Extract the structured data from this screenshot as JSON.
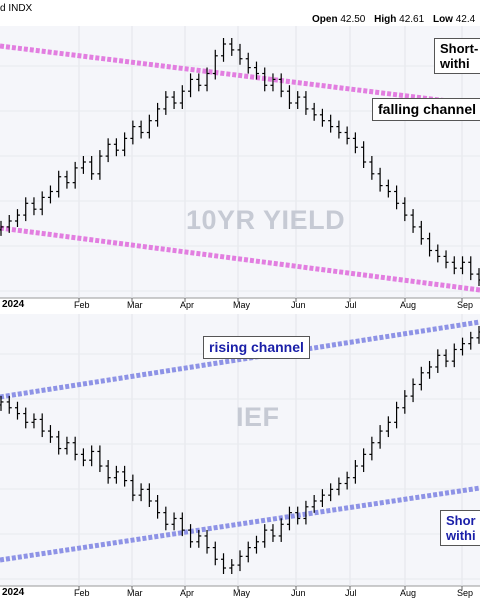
{
  "header": {
    "title": "d INDX",
    "open_label": "Open",
    "open_value": "42.50",
    "high_label": "High",
    "high_value": "42.61",
    "low_label": "Low",
    "low_value": "42.4"
  },
  "colors": {
    "channel_top": "#e27ee0",
    "channel_bottom": "#8e93e6",
    "bars": "#000000",
    "panel_bg": "#f5f6fa",
    "watermark": "#c6cad4",
    "blue_text": "#1a1fa8"
  },
  "annotations": {
    "top_short_line1": "Short-",
    "top_short_line2": "withi",
    "falling_channel": "falling channel",
    "rising_channel": "rising channel",
    "bottom_short_line1": "Shor",
    "bottom_short_line2": "withi"
  },
  "chart_data": [
    {
      "type": "ohlc",
      "watermark": "10YR YIELD",
      "x_axis": {
        "year": "2024",
        "months": [
          "Feb",
          "Mar",
          "Apr",
          "May",
          "Jun",
          "Jul",
          "Aug",
          "Sep"
        ]
      },
      "channel": "falling",
      "closes": [
        38,
        40,
        42,
        46,
        44,
        48,
        50,
        55,
        53,
        58,
        60,
        56,
        62,
        66,
        64,
        68,
        72,
        70,
        74,
        78,
        82,
        80,
        84,
        88,
        86,
        90,
        96,
        100,
        98,
        95,
        92,
        90,
        86,
        88,
        84,
        80,
        82,
        78,
        76,
        74,
        72,
        70,
        68,
        65,
        60,
        56,
        52,
        50,
        46,
        42,
        38,
        34,
        30,
        28,
        26,
        24,
        26,
        22,
        20
      ]
    },
    {
      "type": "ohlc",
      "watermark": "IEF",
      "x_axis": {
        "year": "2024",
        "months": [
          "Feb",
          "Mar",
          "Apr",
          "May",
          "Jun",
          "Jul",
          "Aug",
          "Sep"
        ]
      },
      "channel": "rising",
      "closes": [
        62,
        60,
        58,
        55,
        56,
        52,
        50,
        46,
        48,
        44,
        42,
        45,
        40,
        36,
        38,
        35,
        30,
        32,
        28,
        24,
        20,
        22,
        18,
        14,
        16,
        12,
        8,
        5,
        6,
        9,
        12,
        14,
        18,
        16,
        20,
        24,
        22,
        26,
        28,
        30,
        32,
        34,
        36,
        40,
        44,
        48,
        52,
        55,
        60,
        64,
        68,
        72,
        74,
        78,
        76,
        80,
        82,
        84,
        86
      ]
    }
  ]
}
